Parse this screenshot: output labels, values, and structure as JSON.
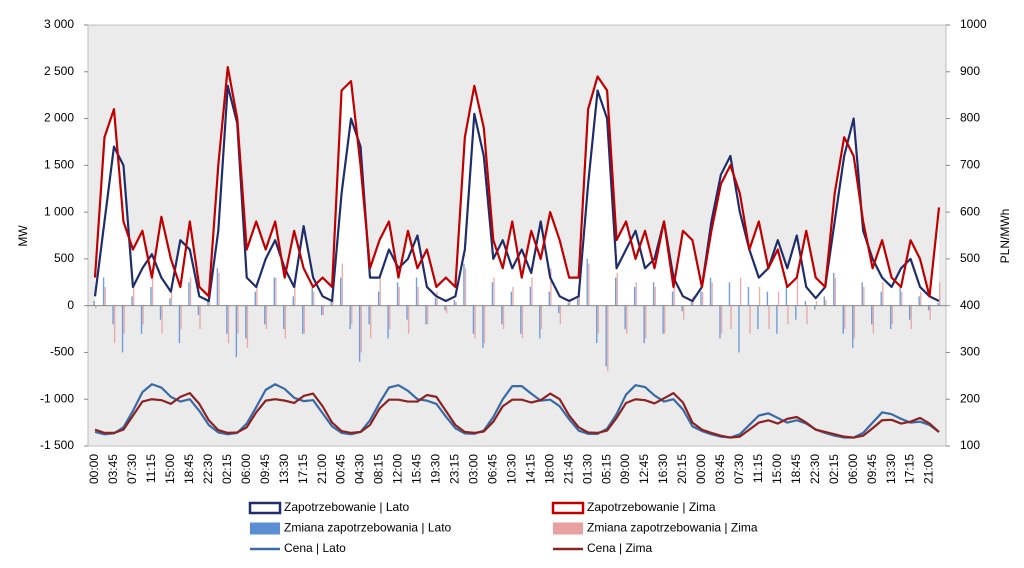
{
  "chart_data": {
    "type": "combo",
    "y_label": "MW",
    "y2_label": "PLN/MWh",
    "plot_background": "#ebebeb",
    "grid": false,
    "ylim": [
      -1500,
      3000
    ],
    "yticks": [
      {
        "value": -1500,
        "label": "-1 500"
      },
      {
        "value": -1000,
        "label": "-1 000"
      },
      -500,
      0,
      500,
      {
        "value": 1000,
        "label": "1 000"
      },
      {
        "value": 1500,
        "label": "1 500"
      },
      {
        "value": 2000,
        "label": "2 000"
      },
      {
        "value": 2500,
        "label": "2 500"
      },
      {
        "value": 3000,
        "label": "3 000"
      }
    ],
    "y2lim": [
      100,
      1000
    ],
    "y2ticks": [
      100,
      200,
      300,
      400,
      500,
      600,
      700,
      800,
      900,
      1000
    ],
    "categories": [
      "00:00",
      null,
      "03:45",
      null,
      "07:30",
      null,
      "11:15",
      null,
      "15:00",
      null,
      "18:45",
      null,
      "22:30",
      null,
      "02:15",
      null,
      "06:00",
      null,
      "09:45",
      null,
      "13:30",
      null,
      "17:15",
      null,
      "21:00",
      null,
      "00:45",
      null,
      "04:30",
      null,
      "08:15",
      null,
      "12:00",
      null,
      "15:45",
      null,
      "19:30",
      null,
      "23:15",
      null,
      "03:00",
      null,
      "06:45",
      null,
      "10:30",
      null,
      "14:15",
      null,
      "18:00",
      null,
      "21:45",
      null,
      "01:30",
      null,
      "05:15",
      null,
      "09:00",
      null,
      "12:45",
      null,
      "16:30",
      null,
      "20:15",
      null,
      "00:00",
      null,
      "03:45",
      null,
      "07:30",
      null,
      "11:15",
      null,
      "15:00",
      null,
      "18:45",
      null,
      "22:30",
      null,
      "02:15",
      null,
      "06:00",
      null,
      "09:45",
      null,
      "13:30",
      null,
      "17:15",
      null,
      "21:00",
      null
    ],
    "series": [
      {
        "name": "Zapotrzebowanie | Lato",
        "type": "area",
        "color": "#1f2d6b",
        "fill": "#ffffff",
        "values": [
          100,
          900,
          1700,
          1500,
          200,
          400,
          550,
          300,
          150,
          700,
          600,
          100,
          50,
          800,
          2350,
          1950,
          300,
          200,
          500,
          700,
          400,
          200,
          850,
          300,
          100,
          50,
          1200,
          2000,
          1700,
          300,
          300,
          600,
          400,
          500,
          750,
          200,
          100,
          50,
          100,
          600,
          2050,
          1600,
          500,
          700,
          400,
          600,
          350,
          900,
          300,
          100,
          50,
          100,
          1300,
          2300,
          2000,
          400,
          600,
          800,
          400,
          500,
          900,
          300,
          100,
          50,
          200,
          900,
          1400,
          1600,
          1000,
          600,
          300,
          400,
          700,
          400,
          750,
          200,
          80,
          200,
          900,
          1600,
          2000,
          800,
          500,
          300,
          200,
          400,
          500,
          200,
          100,
          50
        ]
      },
      {
        "name": "Zapotrzebowanie | Zima",
        "type": "area",
        "color": "#c00000",
        "fill": "#ffffff",
        "values": [
          300,
          1800,
          2100,
          900,
          600,
          800,
          300,
          950,
          500,
          200,
          900,
          200,
          100,
          1500,
          2550,
          2000,
          600,
          900,
          600,
          900,
          300,
          800,
          400,
          200,
          300,
          200,
          2300,
          2400,
          1500,
          400,
          700,
          900,
          300,
          800,
          400,
          600,
          200,
          300,
          200,
          1800,
          2350,
          1900,
          700,
          400,
          900,
          300,
          800,
          500,
          1000,
          700,
          300,
          300,
          2100,
          2450,
          2300,
          700,
          900,
          500,
          800,
          400,
          900,
          200,
          800,
          700,
          200,
          800,
          1300,
          1500,
          1200,
          600,
          900,
          400,
          600,
          200,
          300,
          800,
          300,
          200,
          1200,
          1800,
          1600,
          900,
          400,
          700,
          300,
          200,
          700,
          500,
          100,
          1050
        ]
      },
      {
        "name": "Zmiana zapotrzebowania | Lato",
        "type": "bar",
        "color": "#5b8fd4",
        "values": [
          50,
          300,
          -200,
          -500,
          100,
          -300,
          200,
          -150,
          80,
          -400,
          250,
          -100,
          60,
          400,
          -300,
          -550,
          -350,
          150,
          -200,
          300,
          -250,
          100,
          -300,
          200,
          -100,
          40,
          300,
          -250,
          -600,
          -200,
          150,
          -350,
          250,
          -150,
          300,
          -200,
          80,
          -50,
          60,
          450,
          -300,
          -450,
          250,
          -200,
          150,
          -300,
          200,
          -350,
          150,
          -80,
          30,
          80,
          500,
          -400,
          -650,
          300,
          -250,
          200,
          -400,
          250,
          -300,
          150,
          -60,
          40,
          150,
          300,
          -350,
          250,
          -500,
          200,
          -250,
          150,
          -300,
          250,
          -150,
          50,
          -40,
          100,
          350,
          -300,
          -450,
          250,
          -200,
          150,
          -250,
          200,
          -150,
          100,
          -50,
          30
        ]
      },
      {
        "name": "Zmiana zapotrzebowania | Zima",
        "type": "bar",
        "color": "#e8a0a0",
        "values": [
          -30,
          200,
          -400,
          -300,
          250,
          -200,
          350,
          -300,
          150,
          -250,
          300,
          -250,
          50,
          350,
          -400,
          -300,
          -450,
          250,
          -250,
          300,
          -350,
          250,
          -300,
          150,
          -100,
          60,
          450,
          -200,
          -500,
          -350,
          300,
          -250,
          200,
          -300,
          200,
          -200,
          150,
          -80,
          40,
          400,
          -350,
          -400,
          300,
          -250,
          200,
          -350,
          300,
          -250,
          400,
          -200,
          50,
          100,
          450,
          -300,
          -700,
          350,
          -300,
          250,
          -350,
          200,
          -300,
          350,
          -150,
          100,
          150,
          250,
          -300,
          -250,
          300,
          -300,
          200,
          -250,
          150,
          -200,
          300,
          -200,
          50,
          60,
          300,
          -250,
          -350,
          200,
          -300,
          250,
          -200,
          150,
          -250,
          150,
          -150,
          250
        ]
      },
      {
        "name": "Cena | Lato",
        "type": "line",
        "axis": "y2",
        "color": "#3a6aa5",
        "values": [
          130,
          125,
          127,
          140,
          175,
          215,
          232,
          225,
          205,
          195,
          200,
          175,
          145,
          129,
          125,
          128,
          148,
          183,
          220,
          232,
          222,
          203,
          196,
          198,
          170,
          142,
          128,
          125,
          130,
          155,
          192,
          225,
          230,
          218,
          200,
          197,
          190,
          163,
          138,
          127,
          126,
          133,
          162,
          200,
          228,
          228,
          212,
          197,
          199,
          185,
          157,
          133,
          126,
          126,
          137,
          168,
          210,
          230,
          226,
          208,
          195,
          200,
          178,
          142,
          132,
          125,
          120,
          118,
          125,
          145,
          165,
          170,
          160,
          150,
          155,
          148,
          135,
          128,
          122,
          118,
          118,
          128,
          150,
          172,
          168,
          158,
          150,
          152,
          145,
          130
        ]
      },
      {
        "name": "Cena | Zima",
        "type": "line",
        "axis": "y2",
        "color": "#8b2323",
        "values": [
          135,
          128,
          128,
          135,
          165,
          195,
          200,
          198,
          190,
          205,
          213,
          190,
          155,
          134,
          128,
          129,
          140,
          172,
          197,
          200,
          197,
          192,
          207,
          212,
          185,
          150,
          132,
          128,
          130,
          145,
          180,
          199,
          199,
          195,
          195,
          209,
          205,
          175,
          145,
          130,
          128,
          131,
          152,
          185,
          199,
          199,
          193,
          198,
          212,
          200,
          165,
          140,
          129,
          128,
          133,
          160,
          192,
          200,
          198,
          191,
          202,
          213,
          193,
          150,
          135,
          128,
          122,
          118,
          120,
          135,
          150,
          155,
          148,
          158,
          162,
          150,
          135,
          130,
          125,
          120,
          118,
          122,
          138,
          155,
          156,
          148,
          152,
          160,
          148,
          130
        ]
      }
    ]
  }
}
